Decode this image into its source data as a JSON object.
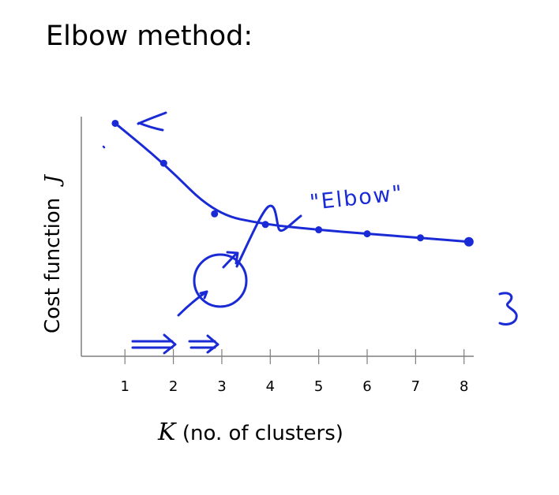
{
  "title": "Elbow method:",
  "chart_data": {
    "type": "line",
    "title": "Elbow method:",
    "xlabel": "(no. of clusters)",
    "xlabel_var": "K",
    "ylabel": "Cost function",
    "ylabel_var": "J",
    "x_ticks": [
      "1",
      "2",
      "3",
      "4",
      "5",
      "6",
      "7",
      "8"
    ],
    "xlim": [
      0.1,
      8.2
    ],
    "x": [
      0.8,
      1.8,
      2.85,
      3.9,
      5.0,
      6.0,
      7.1,
      8.1
    ],
    "y": [
      100,
      70,
      32,
      24,
      20,
      17,
      14,
      11
    ],
    "ylim": [
      -75,
      105
    ],
    "grid": false,
    "annotation_text": "\"Elbow\"",
    "ink_color": "#1a2bd6"
  }
}
